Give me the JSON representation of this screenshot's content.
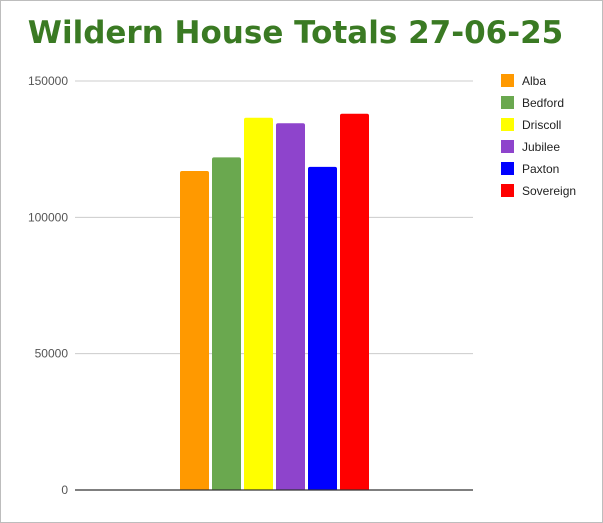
{
  "chart_data": {
    "type": "bar",
    "title": "Wildern House Totals 27-06-25",
    "xlabel": "",
    "ylabel": "",
    "ylim": [
      0,
      150000
    ],
    "yticks": [
      0,
      50000,
      100000,
      150000
    ],
    "ytick_labels": [
      "0",
      "50000",
      "100000",
      "150000"
    ],
    "grid": true,
    "legend_position": "right",
    "series": [
      {
        "name": "Alba",
        "value": 117000,
        "color": "#ff9900"
      },
      {
        "name": "Bedford",
        "value": 122000,
        "color": "#6aa84f"
      },
      {
        "name": "Driscoll",
        "value": 136500,
        "color": "#ffff00"
      },
      {
        "name": "Jubilee",
        "value": 134500,
        "color": "#8e44cc"
      },
      {
        "name": "Paxton",
        "value": 118500,
        "color": "#0000ff"
      },
      {
        "name": "Sovereign",
        "value": 138000,
        "color": "#ff0000"
      }
    ]
  }
}
